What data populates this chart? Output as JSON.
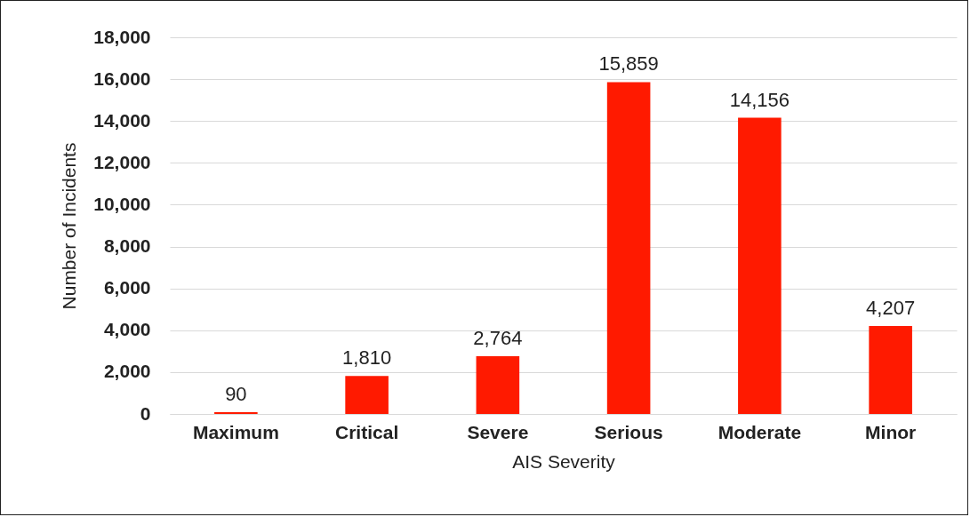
{
  "chart_data": {
    "type": "bar",
    "xlabel": "AIS Severity",
    "ylabel": "Number of Incidents",
    "categories": [
      "Maximum",
      "Critical",
      "Severe",
      "Serious",
      "Moderate",
      "Minor"
    ],
    "values": [
      90,
      1810,
      2764,
      15859,
      14156,
      4207
    ],
    "color": "#ff1a00",
    "value_labels": [
      "90",
      "1,810",
      "2,764",
      "15,859",
      "14,156",
      "4,207"
    ],
    "ylim": [
      0,
      18000
    ],
    "yticks": [
      0,
      {
        "value": 2000,
        "label": "2,000"
      },
      {
        "value": 4000,
        "label": "4,000"
      },
      {
        "value": 6000,
        "label": "6,000"
      },
      {
        "value": 8000,
        "label": "8,000"
      },
      {
        "value": 10000,
        "label": "10,000"
      },
      {
        "value": 12000,
        "label": "12,000"
      },
      {
        "value": 14000,
        "label": "14,000"
      },
      {
        "value": 16000,
        "label": "16,000"
      },
      {
        "value": 18000,
        "label": "18,000"
      }
    ],
    "grid": "y"
  }
}
